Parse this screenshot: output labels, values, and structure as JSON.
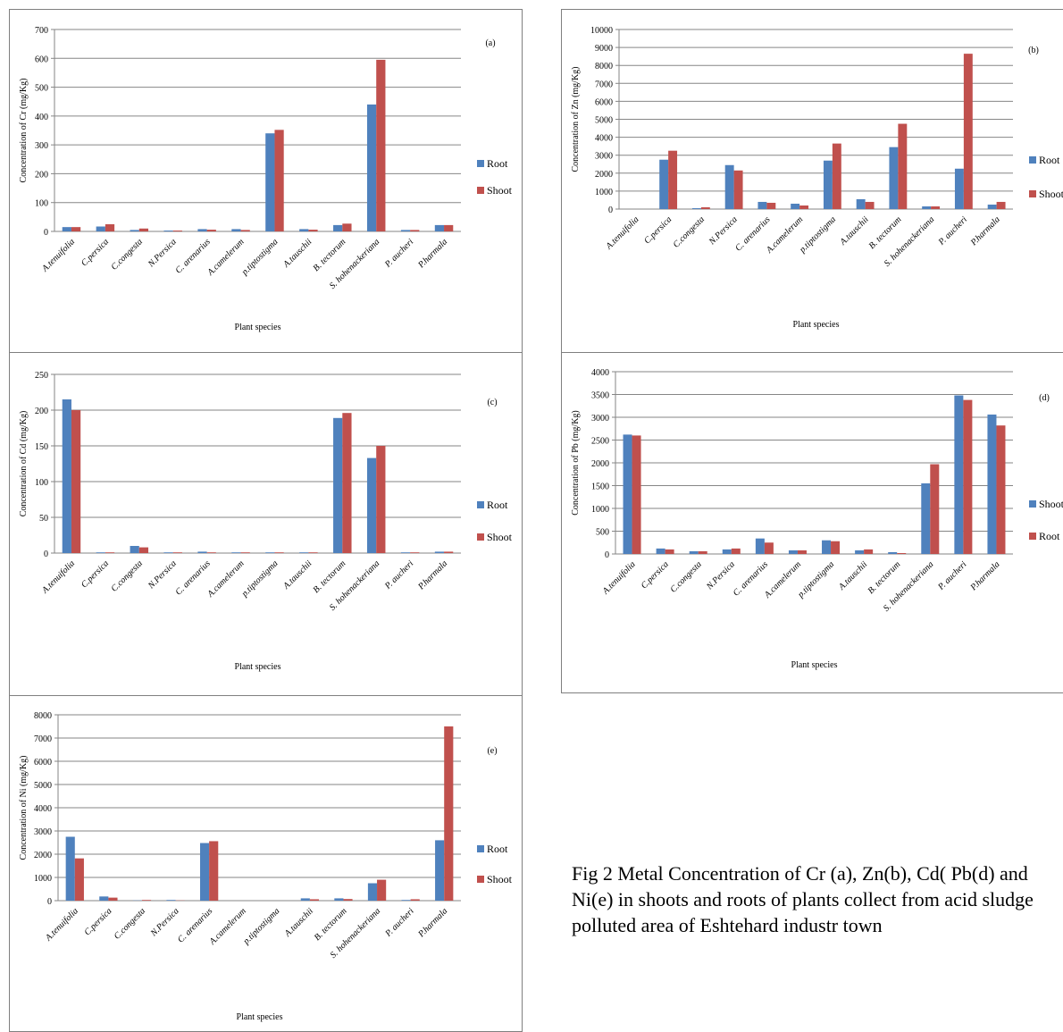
{
  "colors": {
    "root": "#4f81bd",
    "shoot": "#c0504d",
    "grid": "#868686",
    "axis": "#868686"
  },
  "caption": "Fig 2 Metal Concentration of Cr (a), Zn(b), Cd( Pb(d) and Ni(e) in shoots and roots of plants collect from acid sludge polluted area of Eshtehard industr town",
  "chart_data": [
    {
      "id": "a",
      "type": "bar",
      "label": "(a)",
      "ylabel": "Concentration of Cr (mg/Kg)",
      "xlabel": "Plant species",
      "ylim": [
        0,
        700
      ],
      "yticks": [
        0,
        100,
        200,
        300,
        400,
        500,
        600,
        700
      ],
      "categories": [
        "A.tenuifolia",
        "C.persica",
        "C.congesta",
        "N.Persica",
        "C. arenarius",
        "A.camelerum",
        "p.tiptostigma",
        "A.tauschii",
        "B. tectorum",
        "S. hohenackeriana",
        "P. aucheri",
        "P.harmala"
      ],
      "series": [
        {
          "name": "Root",
          "color": "#4f81bd",
          "values": [
            15,
            17,
            5,
            3,
            8,
            8,
            340,
            8,
            22,
            440,
            5,
            22
          ]
        },
        {
          "name": "Shoot",
          "color": "#c0504d",
          "values": [
            15,
            25,
            10,
            3,
            6,
            5,
            352,
            6,
            27,
            595,
            5,
            22
          ]
        }
      ],
      "legend": "right"
    },
    {
      "id": "b",
      "type": "bar",
      "label": "(b)",
      "ylabel": "Concentration of Zn (mg/Kg)",
      "xlabel": "Plant species",
      "ylim": [
        0,
        10000
      ],
      "yticks": [
        0,
        1000,
        2000,
        3000,
        4000,
        5000,
        6000,
        7000,
        8000,
        9000,
        10000
      ],
      "categories": [
        "A.tenuifolia",
        "C.persica",
        "C.congesta",
        "N.Persica",
        "C. arenarius",
        "A.camelerum",
        "p.tiptostigma",
        "A.tauschii",
        "B. tectorum",
        "S. hohenackeriana",
        "P. aucheri",
        "P.harmala"
      ],
      "series": [
        {
          "name": "Root",
          "color": "#4f81bd",
          "values": [
            0,
            2750,
            50,
            2450,
            400,
            300,
            2700,
            550,
            3450,
            150,
            2250,
            250
          ]
        },
        {
          "name": "Shoot",
          "color": "#c0504d",
          "values": [
            0,
            3250,
            100,
            2150,
            350,
            200,
            3650,
            400,
            4750,
            150,
            8650,
            400
          ]
        }
      ],
      "legend": "right"
    },
    {
      "id": "c",
      "type": "bar",
      "label": "(c)",
      "ylabel": "Concentration of Cd (mg/Kg)",
      "xlabel": "Plant species",
      "ylim": [
        0,
        250
      ],
      "yticks": [
        0,
        50,
        100,
        150,
        200,
        250
      ],
      "categories": [
        "A.tenuifolia",
        "C.persica",
        "C.congesta",
        "N.Persica",
        "C. arenarius",
        "A.camelerum",
        "p.tiptostigma",
        "A.tauschii",
        "B. tectorum",
        "S. hohenackeriana",
        "P. aucheri",
        "P.harmala"
      ],
      "series": [
        {
          "name": "Root",
          "color": "#4f81bd",
          "values": [
            215,
            1,
            10,
            1,
            2,
            1,
            1,
            1,
            189,
            133,
            1,
            2
          ]
        },
        {
          "name": "Shoot",
          "color": "#c0504d",
          "values": [
            200,
            1,
            8,
            1,
            1,
            1,
            1,
            1,
            196,
            150,
            1,
            2
          ]
        }
      ],
      "legend": "right"
    },
    {
      "id": "d",
      "type": "bar",
      "label": "(d)",
      "ylabel": "Concentration of Pb (mg/Kg)",
      "xlabel": "Plant species",
      "ylim": [
        0,
        4000
      ],
      "yticks": [
        0,
        500,
        1000,
        1500,
        2000,
        2500,
        3000,
        3500,
        4000
      ],
      "categories": [
        "A.tenuifolia",
        "C.persica",
        "C.congesta",
        "N.Persica",
        "C. arenarius",
        "A.camelerum",
        "p.tiptostigma",
        "A.tauschii",
        "B. tectorum",
        "S. hohenackeriana",
        "P. aucheri",
        "P.harmala"
      ],
      "series": [
        {
          "name": "Shoot",
          "color": "#4f81bd",
          "values": [
            2620,
            120,
            60,
            100,
            340,
            80,
            300,
            80,
            40,
            1550,
            3480,
            3060
          ]
        },
        {
          "name": "Root",
          "color": "#c0504d",
          "values": [
            2600,
            100,
            60,
            120,
            250,
            80,
            280,
            100,
            20,
            1970,
            3380,
            2820
          ]
        }
      ],
      "legend": "right"
    },
    {
      "id": "e",
      "type": "bar",
      "label": "(e)",
      "ylabel": "Concentration of Ni (mg/Kg)",
      "xlabel": "Plant species",
      "ylim": [
        0,
        8000
      ],
      "yticks": [
        0,
        1000,
        2000,
        3000,
        4000,
        5000,
        6000,
        7000,
        8000
      ],
      "categories": [
        "A.tenuifolia",
        "C.persica",
        "C.congesta",
        "N.Persica",
        "C. arenarius",
        "A.camelerum",
        "p.tiptostigma",
        "A.tauschii",
        "B. tectorum",
        "S. hohenackeriana",
        "P. aucheri",
        "P.harmala"
      ],
      "series": [
        {
          "name": "Root",
          "color": "#4f81bd",
          "values": [
            2750,
            180,
            10,
            30,
            2480,
            0,
            0,
            100,
            100,
            750,
            30,
            2600
          ]
        },
        {
          "name": "Shoot",
          "color": "#c0504d",
          "values": [
            1820,
            130,
            30,
            10,
            2560,
            0,
            0,
            60,
            70,
            900,
            60,
            7500
          ]
        }
      ],
      "legend": "right"
    }
  ]
}
